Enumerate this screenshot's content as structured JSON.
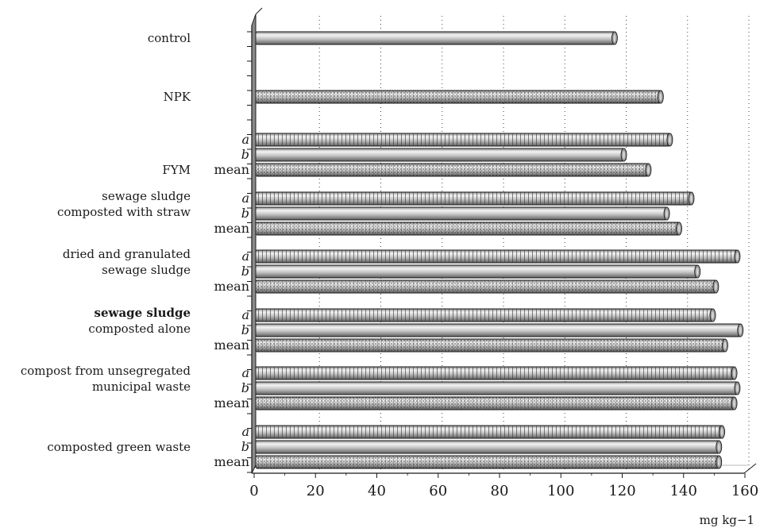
{
  "chart_data": {
    "type": "bar",
    "orientation": "horizontal",
    "style": "3d-cylinder",
    "unit_label": "mg kg−1",
    "xlim": [
      0,
      160
    ],
    "x_ticks": [
      0,
      20,
      40,
      60,
      80,
      100,
      120,
      140,
      160
    ],
    "grid": "vertical dotted",
    "groups": [
      {
        "label": [
          "control"
        ],
        "bold": false,
        "bars": [
          {
            "label": "",
            "value": 117,
            "kind": "plain"
          }
        ]
      },
      {
        "label": [
          "NPK"
        ],
        "bold": false,
        "bars": [
          {
            "label": "",
            "value": 132,
            "kind": "dotted"
          }
        ]
      },
      {
        "label": [
          "FYM"
        ],
        "bold": false,
        "bars": [
          {
            "label": "a",
            "value": 135,
            "kind": "striped"
          },
          {
            "label": "b",
            "value": 120,
            "kind": "plain"
          },
          {
            "label": "mean",
            "value": 128,
            "kind": "dotted"
          }
        ]
      },
      {
        "label": [
          "sewage sludge",
          "composted with straw"
        ],
        "bold": false,
        "bars": [
          {
            "label": "a",
            "value": 142,
            "kind": "striped"
          },
          {
            "label": "b",
            "value": 134,
            "kind": "plain"
          },
          {
            "label": "mean",
            "value": 138,
            "kind": "dotted"
          }
        ]
      },
      {
        "label": [
          "dried and granulated",
          "sewage sludge"
        ],
        "bold": false,
        "bars": [
          {
            "label": "a",
            "value": 157,
            "kind": "striped"
          },
          {
            "label": "b",
            "value": 144,
            "kind": "plain"
          },
          {
            "label": "mean",
            "value": 150,
            "kind": "dotted"
          }
        ]
      },
      {
        "label": [
          "sewage sludge",
          "composted alone"
        ],
        "bold": true,
        "bars": [
          {
            "label": "a",
            "value": 149,
            "kind": "striped"
          },
          {
            "label": "b",
            "value": 158,
            "kind": "plain"
          },
          {
            "label": "mean",
            "value": 153,
            "kind": "dotted"
          }
        ]
      },
      {
        "label": [
          "compost from unsegregated",
          "municipal waste"
        ],
        "bold": false,
        "bars": [
          {
            "label": "a",
            "value": 156,
            "kind": "striped"
          },
          {
            "label": "b",
            "value": 157,
            "kind": "plain"
          },
          {
            "label": "mean",
            "value": 156,
            "kind": "dotted"
          }
        ]
      },
      {
        "label": [
          "composted green waste"
        ],
        "bold": false,
        "bars": [
          {
            "label": "a",
            "value": 152,
            "kind": "striped"
          },
          {
            "label": "b",
            "value": 151,
            "kind": "plain"
          },
          {
            "label": "mean",
            "value": 151,
            "kind": "dotted"
          }
        ]
      }
    ],
    "colors": {
      "bar_fill": "#bdbdbd",
      "bar_dark": "#6e6e6e",
      "bar_light": "#efefef",
      "wall": "#8a8a8a",
      "outline": "#1a1a1a"
    }
  }
}
